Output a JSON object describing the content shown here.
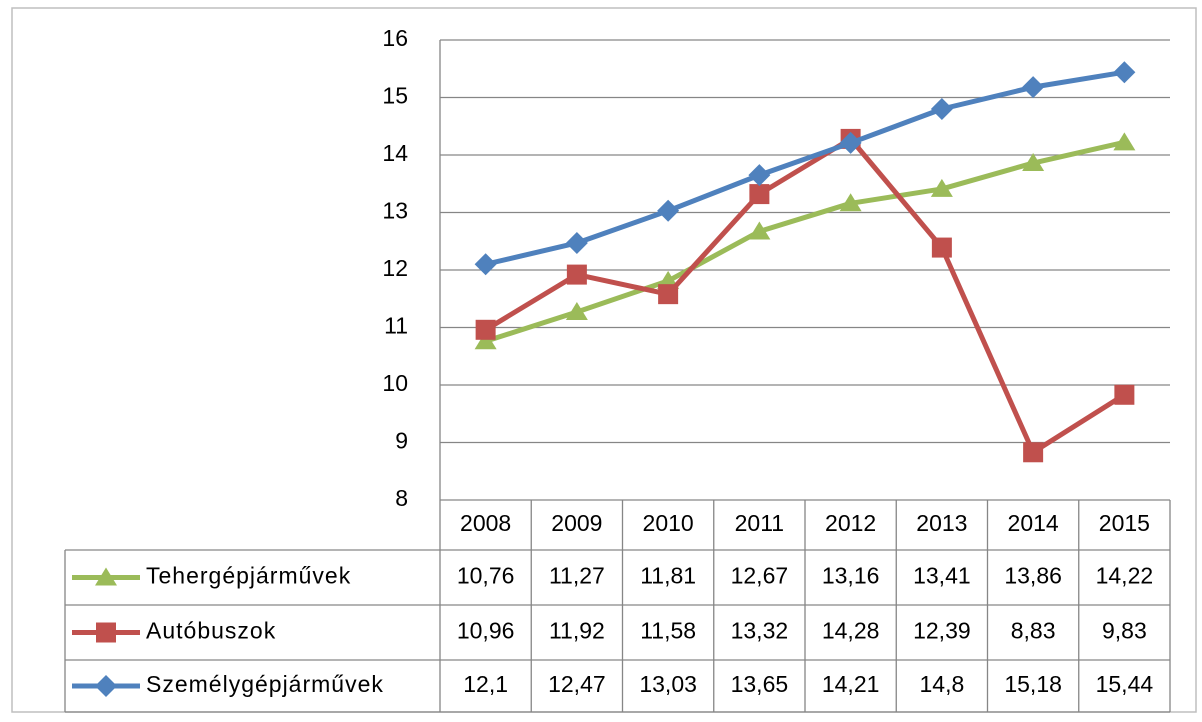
{
  "chart_data": {
    "type": "line",
    "categories": [
      "2008",
      "2009",
      "2010",
      "2011",
      "2012",
      "2013",
      "2014",
      "2015"
    ],
    "ylim": [
      8,
      16
    ],
    "yticks": [
      8,
      9,
      10,
      11,
      12,
      13,
      14,
      15,
      16
    ],
    "grid": true,
    "series": [
      {
        "name": "Tehergépjárművek",
        "color": "#9bbb59",
        "marker": "triangle",
        "values": [
          10.76,
          11.27,
          11.81,
          12.67,
          13.16,
          13.41,
          13.86,
          14.22
        ],
        "value_labels": [
          "10,76",
          "11,27",
          "11,81",
          "12,67",
          "13,16",
          "13,41",
          "13,86",
          "14,22"
        ]
      },
      {
        "name": "Autóbuszok",
        "color": "#c0504d",
        "marker": "square",
        "values": [
          10.96,
          11.92,
          11.58,
          13.32,
          14.28,
          12.39,
          8.83,
          9.83
        ],
        "value_labels": [
          "10,96",
          "11,92",
          "11,58",
          "13,32",
          "14,28",
          "12,39",
          "8,83",
          "9,83"
        ]
      },
      {
        "name": "Személygépjárművek",
        "color": "#4f81bd",
        "marker": "diamond",
        "values": [
          12.1,
          12.47,
          13.03,
          13.65,
          14.21,
          14.8,
          15.18,
          15.44
        ],
        "value_labels": [
          "12,1",
          "12,47",
          "13,03",
          "13,65",
          "14,21",
          "14,8",
          "15,18",
          "15,44"
        ]
      }
    ]
  }
}
